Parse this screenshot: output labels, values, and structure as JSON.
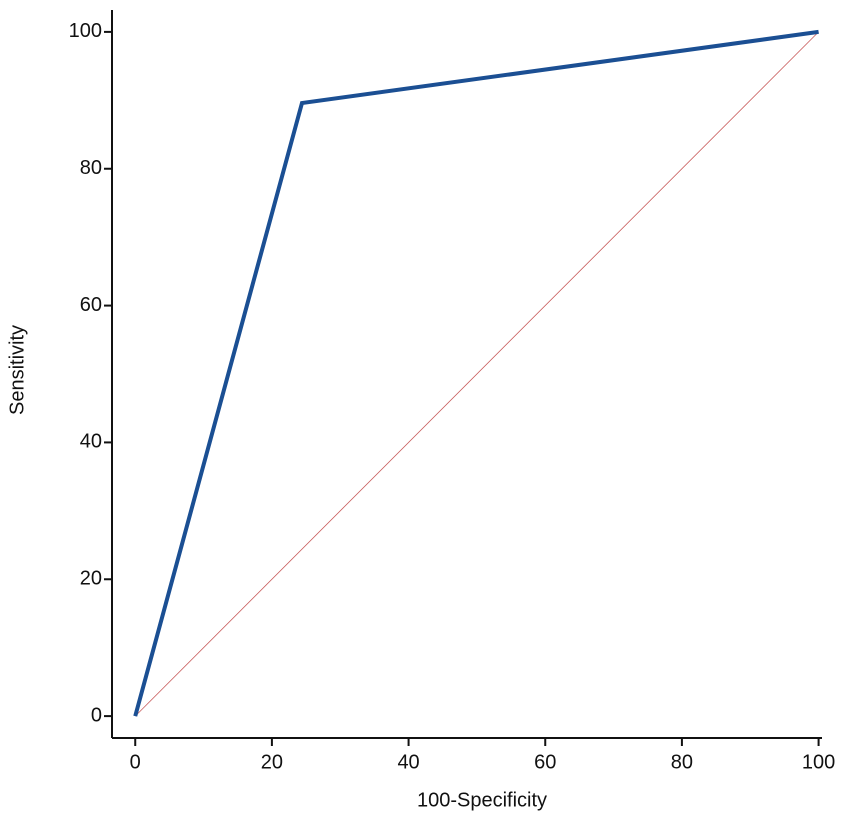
{
  "chart_data": {
    "type": "line",
    "x_label": "100-Specificity",
    "y_label": "Sensitivity",
    "series": [
      {
        "x": [
          0,
          24.4,
          100
        ],
        "values": [
          0,
          89.6,
          100
        ],
        "color": "#1b4f93",
        "width": 4
      },
      {
        "x": [
          0,
          100
        ],
        "values": [
          0,
          100
        ],
        "color": "#c85a5a",
        "width": 0.8
      }
    ],
    "xlim": [
      -3.4,
      100.5
    ],
    "ylim": [
      -3.2,
      103.2
    ],
    "xticks": [
      0,
      20,
      40,
      60,
      80,
      100
    ],
    "yticks": [
      0,
      20,
      40,
      60,
      80,
      100
    ]
  }
}
